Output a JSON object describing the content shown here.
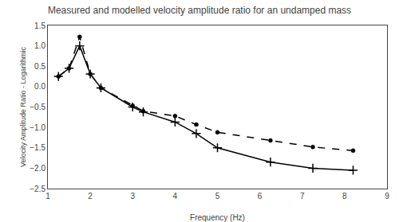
{
  "chart_data": {
    "type": "line",
    "title": "Measured and modelled velocity amplitude ratio for an undamped mass",
    "x_label": "Frequency (Hz)",
    "y_label": "Velocity Amplitude Ratio - Logarithmic",
    "x": [
      1.25,
      1.5,
      1.75,
      2.0,
      2.25,
      3.0,
      3.25,
      4.0,
      4.5,
      5.0,
      6.25,
      7.25,
      8.2
    ],
    "series": [
      {
        "color": "#000000",
        "line_style": "solid",
        "marker": "plus",
        "values": [
          0.25,
          0.45,
          1.0,
          0.31,
          -0.03,
          -0.5,
          -0.62,
          -0.87,
          -1.15,
          -1.5,
          -1.85,
          -2.0,
          -2.05
        ]
      },
      {
        "color": "#000000",
        "line_style": "dashed",
        "marker": "circle",
        "values": [
          0.25,
          0.45,
          1.22,
          0.31,
          -0.03,
          -0.47,
          -0.6,
          -0.72,
          -0.93,
          -1.12,
          -1.32,
          -1.48,
          -1.57
        ]
      }
    ],
    "xlim": [
      1,
      9
    ],
    "ylim": [
      -2.5,
      1.5
    ],
    "xticks": [
      1,
      2,
      3,
      4,
      5,
      6,
      7,
      8,
      9
    ],
    "yticks": [
      {
        "value": -2.5,
        "label": "−2.5"
      },
      {
        "value": -2.0,
        "label": "−2.0"
      },
      {
        "value": -1.5,
        "label": "−1.5"
      },
      {
        "value": -1.0,
        "label": "−1.0"
      },
      {
        "value": -0.5,
        "label": "−0.5"
      },
      {
        "value": 0.0,
        "label": "0.0"
      },
      {
        "value": 0.5,
        "label": "0.5"
      },
      {
        "value": 1.0,
        "label": "1.0"
      },
      {
        "value": 1.5,
        "label": "1.5"
      }
    ],
    "grid": false
  }
}
